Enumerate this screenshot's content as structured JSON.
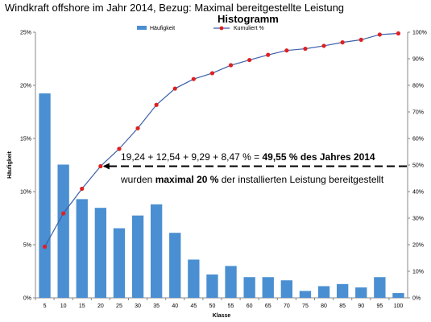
{
  "page_title": "Windkraft offshore im Jahr 2014, Bezug: Maximal bereitgestellte Leistung",
  "chart_data": {
    "type": "bar",
    "title": "Histogramm",
    "xlabel": "Klasse",
    "ylabel": "Häufigkeit",
    "categories": [
      "5",
      "10",
      "15",
      "20",
      "25",
      "30",
      "35",
      "40",
      "45",
      "50",
      "55",
      "60",
      "65",
      "70",
      "75",
      "80",
      "85",
      "90",
      "95",
      "100"
    ],
    "series": [
      {
        "name": "Häufigkeit",
        "type": "bar",
        "axis": "left",
        "color": "#4a8fd1",
        "values": [
          19.24,
          12.54,
          9.29,
          8.47,
          6.55,
          7.75,
          8.8,
          6.12,
          3.6,
          2.2,
          3.0,
          1.95,
          1.95,
          1.65,
          0.65,
          1.1,
          1.3,
          0.98,
          1.95,
          0.45
        ]
      },
      {
        "name": "Kumuliert %",
        "type": "line",
        "axis": "right",
        "color": "#3a5fa8",
        "marker_color": "#e02020",
        "values": [
          19.24,
          31.78,
          41.07,
          49.55,
          56.1,
          63.85,
          72.65,
          78.77,
          82.37,
          84.57,
          87.57,
          89.52,
          91.47,
          93.12,
          93.77,
          94.87,
          96.17,
          97.15,
          99.1,
          99.55
        ]
      }
    ],
    "ylim_left": [
      0,
      25
    ],
    "yticks_left": [
      "0%",
      "5%",
      "10%",
      "15%",
      "20%",
      "25%"
    ],
    "ylim_right": [
      0,
      100
    ],
    "yticks_right": [
      "0%",
      "10%",
      "20%",
      "30%",
      "40%",
      "50%",
      "60%",
      "70%",
      "80%",
      "90%",
      "100%"
    ],
    "legend_position": "top",
    "grid": false
  },
  "annotation": {
    "line1_prefix": "19,24 + 12,54 + 9,29 + 8,47  % = ",
    "line1_bold": "49,55 % des Jahres 2014",
    "line2_prefix": "wurden ",
    "line2_bold": "maximal 20 %",
    "line2_suffix": " der installierten Leistung bereitgestellt"
  }
}
